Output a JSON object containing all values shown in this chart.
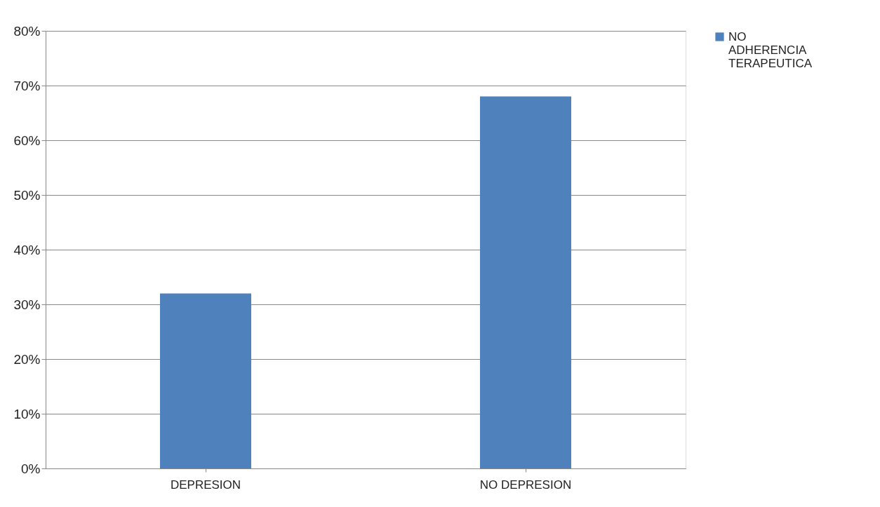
{
  "chart_data": {
    "type": "bar",
    "categories": [
      "DEPRESION",
      "NO DEPRESION"
    ],
    "series": [
      {
        "name": "NO ADHERENCIA TERAPEUTICA",
        "color": "#4f81bd",
        "values": [
          32,
          68
        ]
      }
    ],
    "ylim": [
      0,
      80
    ],
    "yticks": [
      {
        "value": 0,
        "label": "0%"
      },
      {
        "value": 10,
        "label": "10%"
      },
      {
        "value": 20,
        "label": "20%"
      },
      {
        "value": 30,
        "label": "30%"
      },
      {
        "value": 40,
        "label": "40%"
      },
      {
        "value": 50,
        "label": "50%"
      },
      {
        "value": 60,
        "label": "60%"
      },
      {
        "value": 70,
        "label": "70%"
      },
      {
        "value": 80,
        "label": "80%"
      }
    ],
    "grid": "y",
    "legend": "right"
  }
}
